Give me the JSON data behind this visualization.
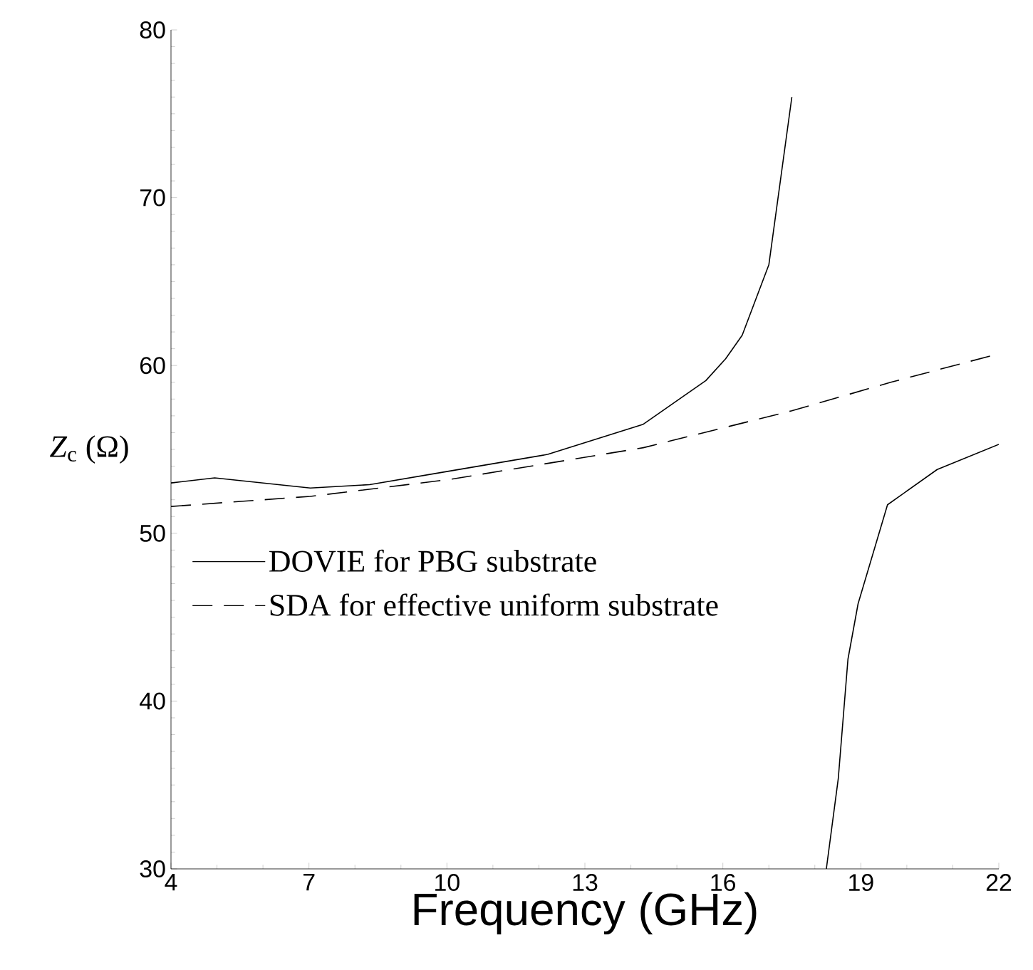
{
  "chart_data": {
    "type": "line",
    "xlabel": "Frequency (GHz)",
    "ylabel": "*Z*$_{c}$ (Ω)",
    "xlim": [
      4,
      22
    ],
    "ylim": [
      30,
      80
    ],
    "xticks": [
      4,
      7,
      10,
      13,
      16,
      19,
      22
    ],
    "yticks": [
      30,
      40,
      50,
      60,
      70,
      80
    ],
    "grid": false,
    "legend": "left",
    "marker": "none",
    "series": [
      {
        "name": "DOVIE for PBG substrate",
        "color": "#000000",
        "line_style": "solid",
        "x": [
          4,
          4.95,
          7.03,
          8.32,
          10.04,
          12.19,
          14.27,
          15.63,
          16.06,
          16.42,
          17.0,
          17.5,
          null,
          18.25,
          18.51,
          18.72,
          18.94,
          19.58,
          20.66,
          22
        ],
        "values": [
          53.0,
          53.3,
          52.7,
          52.9,
          53.7,
          54.7,
          56.5,
          59.1,
          60.4,
          61.8,
          66.0,
          76.0,
          null,
          30,
          35.4,
          42.5,
          45.8,
          51.7,
          53.8,
          55.3
        ]
      },
      {
        "name": "SDA for effective uniform substrate",
        "color": "#000000",
        "line_style": "dashed",
        "x": [
          4,
          7.03,
          10.04,
          14.27,
          17.5,
          19.65,
          22
        ],
        "values": [
          51.6,
          52.2,
          53.2,
          55.1,
          57.3,
          59.0,
          60.7
        ]
      }
    ]
  }
}
